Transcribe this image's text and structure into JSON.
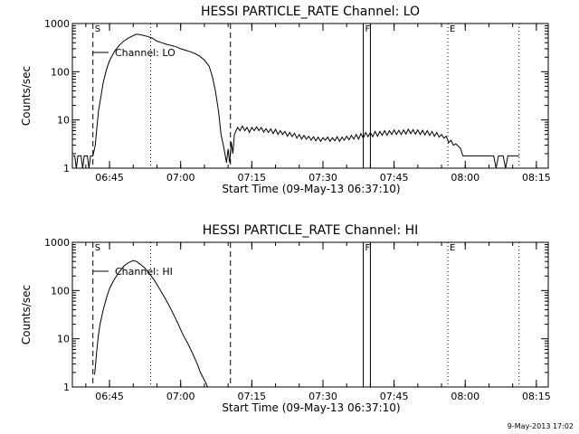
{
  "figure_stamp": "9-May-2013 17:02",
  "chart_data": [
    {
      "type": "line",
      "title": "HESSI PARTICLE_RATE Channel: LO",
      "xlabel": "Start Time (09-May-13 06:37:10)",
      "ylabel": "Counts/sec",
      "ylog": true,
      "ylim": [
        1,
        1000
      ],
      "xlim": [
        "06:37:10",
        "08:17:30"
      ],
      "yticks": [
        {
          "v": 1,
          "label": "1"
        },
        {
          "v": 10,
          "label": "10"
        },
        {
          "v": 100,
          "label": "100"
        },
        {
          "v": 1000,
          "label": "1000"
        }
      ],
      "xticks": [
        "06:45",
        "07:00",
        "07:15",
        "07:30",
        "07:45",
        "08:00",
        "08:15"
      ],
      "legend": "Channel: LO",
      "legend_position": "top-left",
      "markers": [
        {
          "t": "06:41:30",
          "style": "dashed",
          "label": "S"
        },
        {
          "t": "06:53:40",
          "style": "dotted",
          "label": ""
        },
        {
          "t": "07:10:30",
          "style": "dashed",
          "label": ""
        },
        {
          "t": "07:38:30",
          "style": "solid",
          "label": "F"
        },
        {
          "t": "07:40:00",
          "style": "solid",
          "label": ""
        },
        {
          "t": "07:56:20",
          "style": "dotted",
          "label": "E"
        },
        {
          "t": "08:11:20",
          "style": "dotted",
          "label": ""
        }
      ],
      "series": [
        {
          "name": "Channel: LO",
          "points": [
            [
              "06:37:20",
              1.8
            ],
            [
              "06:37:40",
              1.8
            ],
            [
              "06:38:00",
              1
            ],
            [
              "06:38:20",
              1.8
            ],
            [
              "06:39:00",
              1.8
            ],
            [
              "06:39:20",
              1
            ],
            [
              "06:39:40",
              1.8
            ],
            [
              "06:40:20",
              1.8
            ],
            [
              "06:40:40",
              1
            ],
            [
              "06:41:00",
              1.8
            ],
            [
              "06:41:30",
              1.8
            ],
            [
              "06:42:00",
              3
            ],
            [
              "06:42:20",
              7
            ],
            [
              "06:42:40",
              15
            ],
            [
              "06:43:10",
              30
            ],
            [
              "06:43:40",
              60
            ],
            [
              "06:44:20",
              110
            ],
            [
              "06:45:00",
              170
            ],
            [
              "06:46:00",
              260
            ],
            [
              "06:47:00",
              350
            ],
            [
              "06:48:00",
              430
            ],
            [
              "06:49:00",
              500
            ],
            [
              "06:50:00",
              560
            ],
            [
              "06:50:40",
              600
            ],
            [
              "06:51:20",
              590
            ],
            [
              "06:52:00",
              570
            ],
            [
              "06:53:00",
              540
            ],
            [
              "06:54:00",
              500
            ],
            [
              "06:55:00",
              430
            ],
            [
              "06:56:00",
              400
            ],
            [
              "06:57:00",
              370
            ],
            [
              "06:58:00",
              350
            ],
            [
              "06:59:00",
              330
            ],
            [
              "07:00:00",
              300
            ],
            [
              "07:01:00",
              280
            ],
            [
              "07:02:00",
              260
            ],
            [
              "07:03:00",
              240
            ],
            [
              "07:04:00",
              210
            ],
            [
              "07:05:00",
              175
            ],
            [
              "07:06:00",
              130
            ],
            [
              "07:06:40",
              80
            ],
            [
              "07:07:20",
              40
            ],
            [
              "07:08:00",
              15
            ],
            [
              "07:08:30",
              5
            ],
            [
              "07:09:00",
              3
            ],
            [
              "07:09:20",
              2
            ],
            [
              "07:09:40",
              1.3
            ],
            [
              "07:10:00",
              2.5
            ],
            [
              "07:10:20",
              1.3
            ],
            [
              "07:10:40",
              3.5
            ],
            [
              "07:11:00",
              2
            ],
            [
              "07:11:20",
              5
            ],
            [
              "07:12:00",
              7
            ],
            [
              "07:12:30",
              6
            ],
            [
              "07:13:00",
              7.5
            ],
            [
              "07:13:30",
              6
            ],
            [
              "07:14:00",
              7
            ],
            [
              "07:14:30",
              5.5
            ],
            [
              "07:15:00",
              7
            ],
            [
              "07:15:30",
              6
            ],
            [
              "07:16:00",
              7.2
            ],
            [
              "07:16:30",
              6
            ],
            [
              "07:17:00",
              7
            ],
            [
              "07:17:30",
              5.6
            ],
            [
              "07:18:00",
              6.6
            ],
            [
              "07:18:30",
              5.5
            ],
            [
              "07:19:00",
              6.5
            ],
            [
              "07:19:30",
              5.2
            ],
            [
              "07:20:00",
              6.4
            ],
            [
              "07:20:30",
              5
            ],
            [
              "07:21:00",
              6
            ],
            [
              "07:21:30",
              5
            ],
            [
              "07:22:00",
              5.8
            ],
            [
              "07:22:30",
              4.6
            ],
            [
              "07:23:00",
              5.5
            ],
            [
              "07:23:30",
              4.5
            ],
            [
              "07:24:00",
              5.3
            ],
            [
              "07:24:30",
              4.2
            ],
            [
              "07:25:00",
              5
            ],
            [
              "07:25:30",
              4
            ],
            [
              "07:26:00",
              4.8
            ],
            [
              "07:26:30",
              4
            ],
            [
              "07:27:00",
              4.6
            ],
            [
              "07:27:30",
              3.8
            ],
            [
              "07:28:00",
              4.5
            ],
            [
              "07:28:30",
              3.7
            ],
            [
              "07:29:00",
              4.4
            ],
            [
              "07:29:30",
              3.6
            ],
            [
              "07:30:00",
              4.3
            ],
            [
              "07:30:30",
              3.8
            ],
            [
              "07:31:00",
              4.4
            ],
            [
              "07:31:30",
              3.6
            ],
            [
              "07:32:00",
              4.3
            ],
            [
              "07:32:30",
              3.7
            ],
            [
              "07:33:00",
              4.5
            ],
            [
              "07:33:30",
              3.6
            ],
            [
              "07:34:00",
              4.4
            ],
            [
              "07:34:30",
              3.8
            ],
            [
              "07:35:00",
              4.6
            ],
            [
              "07:35:30",
              3.9
            ],
            [
              "07:36:00",
              4.8
            ],
            [
              "07:36:30",
              4
            ],
            [
              "07:37:00",
              5
            ],
            [
              "07:37:30",
              4
            ],
            [
              "07:38:00",
              5.2
            ],
            [
              "07:38:30",
              4.2
            ],
            [
              "07:39:00",
              5.5
            ],
            [
              "07:39:30",
              4.5
            ],
            [
              "07:40:00",
              5.5
            ],
            [
              "07:40:30",
              4.5
            ],
            [
              "07:41:00",
              5.8
            ],
            [
              "07:41:30",
              4.6
            ],
            [
              "07:42:00",
              5.8
            ],
            [
              "07:42:30",
              4.8
            ],
            [
              "07:43:00",
              6
            ],
            [
              "07:43:30",
              4.8
            ],
            [
              "07:44:00",
              6
            ],
            [
              "07:44:30",
              5
            ],
            [
              "07:45:00",
              6.2
            ],
            [
              "07:45:30",
              5
            ],
            [
              "07:46:00",
              6.1
            ],
            [
              "07:46:30",
              5
            ],
            [
              "07:47:00",
              6.2
            ],
            [
              "07:47:30",
              5.1
            ],
            [
              "07:48:00",
              6.4
            ],
            [
              "07:48:30",
              5.2
            ],
            [
              "07:49:00",
              6.3
            ],
            [
              "07:49:30",
              5.1
            ],
            [
              "07:50:00",
              6.2
            ],
            [
              "07:50:30",
              5
            ],
            [
              "07:51:00",
              6.1
            ],
            [
              "07:51:30",
              4.9
            ],
            [
              "07:52:00",
              6
            ],
            [
              "07:52:30",
              4.8
            ],
            [
              "07:53:00",
              5.8
            ],
            [
              "07:53:30",
              4.6
            ],
            [
              "07:54:00",
              5.5
            ],
            [
              "07:54:30",
              4.4
            ],
            [
              "07:55:00",
              5
            ],
            [
              "07:55:30",
              4.2
            ],
            [
              "07:56:00",
              4.6
            ],
            [
              "07:56:30",
              3.4
            ],
            [
              "07:57:00",
              3.8
            ],
            [
              "07:57:30",
              3
            ],
            [
              "07:58:00",
              3.2
            ],
            [
              "07:59:00",
              2.6
            ],
            [
              "07:59:30",
              1.8
            ],
            [
              "08:01:00",
              1.8
            ],
            [
              "08:02:00",
              1.8
            ],
            [
              "08:03:00",
              1.8
            ],
            [
              "08:04:00",
              1.8
            ],
            [
              "08:05:00",
              1.8
            ],
            [
              "08:06:00",
              1.8
            ],
            [
              "08:06:30",
              1
            ],
            [
              "08:07:00",
              1.8
            ],
            [
              "08:08:00",
              1.8
            ],
            [
              "08:08:30",
              1
            ],
            [
              "08:09:00",
              1.8
            ],
            [
              "08:10:00",
              1.8
            ],
            [
              "08:11:20",
              1.8
            ]
          ]
        }
      ]
    },
    {
      "type": "line",
      "title": "HESSI PARTICLE_RATE Channel: HI",
      "xlabel": "Start Time (09-May-13 06:37:10)",
      "ylabel": "Counts/sec",
      "ylog": true,
      "ylim": [
        1,
        1000
      ],
      "xlim": [
        "06:37:10",
        "08:17:30"
      ],
      "yticks": [
        {
          "v": 1,
          "label": "1"
        },
        {
          "v": 10,
          "label": "10"
        },
        {
          "v": 100,
          "label": "100"
        },
        {
          "v": 1000,
          "label": "1000"
        }
      ],
      "xticks": [
        "06:45",
        "07:00",
        "07:15",
        "07:30",
        "07:45",
        "08:00",
        "08:15"
      ],
      "legend": "Channel: HI",
      "legend_position": "top-left",
      "markers": [
        {
          "t": "06:41:30",
          "style": "dashed",
          "label": "S"
        },
        {
          "t": "06:53:40",
          "style": "dotted",
          "label": ""
        },
        {
          "t": "07:10:30",
          "style": "dashed",
          "label": ""
        },
        {
          "t": "07:38:30",
          "style": "solid",
          "label": "F"
        },
        {
          "t": "07:40:00",
          "style": "solid",
          "label": ""
        },
        {
          "t": "07:56:20",
          "style": "dotted",
          "label": "E"
        },
        {
          "t": "08:11:20",
          "style": "dotted",
          "label": ""
        }
      ],
      "series": [
        {
          "name": "Channel: HI",
          "points": [
            [
              "06:41:50",
              1.8
            ],
            [
              "06:42:00",
              2.5
            ],
            [
              "06:42:20",
              6
            ],
            [
              "06:42:40",
              12
            ],
            [
              "06:43:00",
              20
            ],
            [
              "06:43:40",
              40
            ],
            [
              "06:44:20",
              70
            ],
            [
              "06:45:00",
              110
            ],
            [
              "06:46:00",
              170
            ],
            [
              "06:47:00",
              240
            ],
            [
              "06:48:00",
              320
            ],
            [
              "06:49:00",
              380
            ],
            [
              "06:50:00",
              420
            ],
            [
              "06:50:40",
              400
            ],
            [
              "06:51:30",
              350
            ],
            [
              "06:52:30",
              290
            ],
            [
              "06:53:30",
              220
            ],
            [
              "06:54:30",
              160
            ],
            [
              "06:55:30",
              110
            ],
            [
              "06:56:30",
              75
            ],
            [
              "06:57:30",
              50
            ],
            [
              "06:58:30",
              32
            ],
            [
              "06:59:30",
              20
            ],
            [
              "07:00:30",
              12
            ],
            [
              "07:01:30",
              8
            ],
            [
              "07:02:30",
              5
            ],
            [
              "07:03:30",
              3
            ],
            [
              "07:04:10",
              2
            ],
            [
              "07:04:50",
              1.5
            ],
            [
              "07:05:20",
              1.2
            ],
            [
              "07:05:40",
              1
            ]
          ]
        }
      ]
    }
  ]
}
